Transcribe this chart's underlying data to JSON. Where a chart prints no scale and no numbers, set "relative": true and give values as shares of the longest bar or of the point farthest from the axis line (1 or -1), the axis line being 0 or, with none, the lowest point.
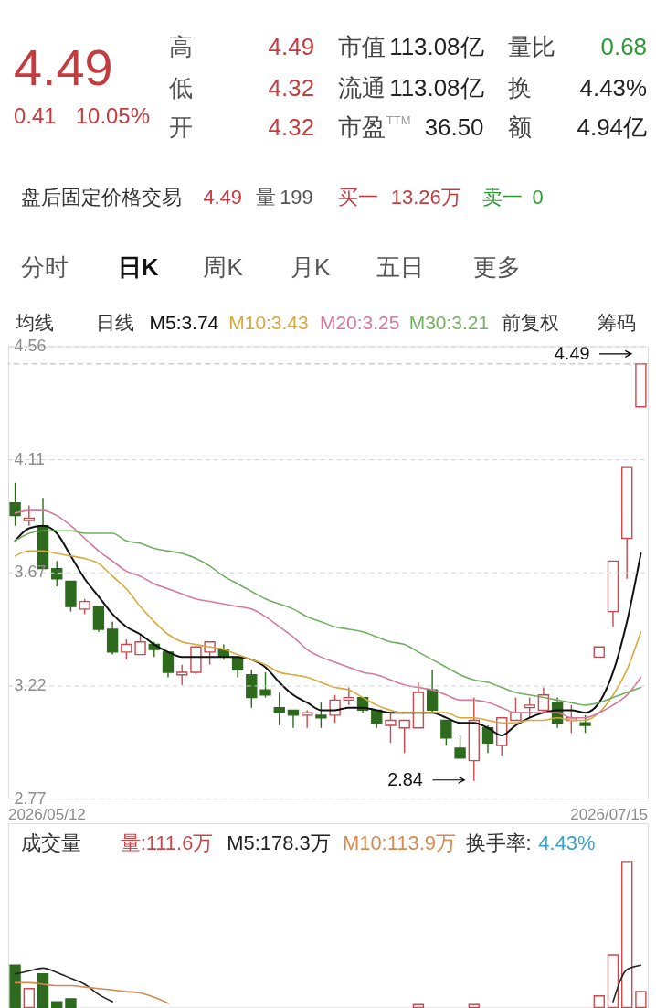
{
  "chart_data": [
    {
      "type": "candlestick",
      "categories": [
        null,
        null,
        null,
        null,
        null,
        null,
        null,
        null,
        null,
        null,
        null,
        null,
        null,
        null,
        null,
        null,
        null,
        null,
        null,
        null,
        null,
        null,
        null,
        null,
        null,
        null,
        null,
        null,
        null,
        null,
        null,
        null,
        null,
        null,
        null,
        null,
        null,
        null,
        null,
        null,
        null,
        null,
        null,
        null,
        null,
        null
      ],
      "ohlc": [
        [
          3.94,
          4.02,
          3.85,
          3.89
        ],
        [
          3.87,
          3.93,
          3.85,
          3.88
        ],
        [
          3.85,
          3.96,
          3.68,
          3.68
        ],
        [
          3.68,
          3.71,
          3.61,
          3.64
        ],
        [
          3.63,
          3.63,
          3.51,
          3.53
        ],
        [
          3.52,
          3.56,
          3.5,
          3.55
        ],
        [
          3.53,
          3.53,
          3.43,
          3.44
        ],
        [
          3.44,
          3.47,
          3.34,
          3.35
        ],
        [
          3.35,
          3.4,
          3.32,
          3.38
        ],
        [
          3.34,
          3.42,
          3.34,
          3.39
        ],
        [
          3.38,
          3.39,
          3.33,
          3.36
        ],
        [
          3.35,
          3.35,
          3.25,
          3.27
        ],
        [
          3.26,
          3.3,
          3.22,
          3.27
        ],
        [
          3.27,
          3.38,
          3.26,
          3.37
        ],
        [
          3.35,
          3.39,
          3.3,
          3.39
        ],
        [
          3.36,
          3.38,
          3.32,
          3.33
        ],
        [
          3.33,
          3.33,
          3.25,
          3.28
        ],
        [
          3.26,
          3.28,
          3.13,
          3.17
        ],
        [
          3.2,
          3.27,
          3.17,
          3.18
        ],
        [
          3.13,
          3.19,
          3.06,
          3.11
        ],
        [
          3.12,
          3.12,
          3.05,
          3.1
        ],
        [
          3.1,
          3.12,
          3.05,
          3.11
        ],
        [
          3.1,
          3.15,
          3.05,
          3.09
        ],
        [
          3.1,
          3.18,
          3.07,
          3.16
        ],
        [
          3.16,
          3.21,
          3.14,
          3.17
        ],
        [
          3.17,
          3.17,
          3.11,
          3.12
        ],
        [
          3.12,
          3.12,
          3.05,
          3.07
        ],
        [
          3.06,
          3.11,
          2.99,
          3.08
        ],
        [
          3.05,
          3.08,
          2.95,
          3.08
        ],
        [
          3.05,
          3.23,
          3.05,
          3.19
        ],
        [
          3.2,
          3.28,
          3.11,
          3.12
        ],
        [
          3.08,
          3.08,
          2.98,
          3.01
        ],
        [
          2.97,
          3.02,
          2.93,
          2.93
        ],
        [
          2.92,
          3.17,
          2.84,
          3.08
        ],
        [
          3.05,
          3.06,
          2.95,
          2.99
        ],
        [
          2.98,
          3.09,
          2.94,
          3.09
        ],
        [
          3.08,
          3.17,
          3.08,
          3.11
        ],
        [
          3.13,
          3.17,
          3.09,
          3.14
        ],
        [
          3.12,
          3.21,
          3.11,
          3.18
        ],
        [
          3.15,
          3.17,
          3.05,
          3.07
        ],
        [
          3.08,
          3.14,
          3.03,
          3.09
        ],
        [
          3.07,
          3.1,
          3.03,
          3.06
        ],
        [
          3.33,
          3.37,
          3.33,
          3.37
        ],
        [
          3.51,
          3.71,
          3.45,
          3.71
        ],
        [
          3.8,
          4.08,
          3.64,
          4.08
        ],
        [
          4.32,
          4.49,
          4.32,
          4.49
        ]
      ],
      "colors": [
        "#2e6a1e",
        "#c8494e",
        "#2e6a1e",
        "#2e6a1e",
        "#2e6a1e",
        "#c8494e",
        "#2e6a1e",
        "#2e6a1e",
        "#c8494e",
        "#c8494e",
        "#2e6a1e",
        "#2e6a1e",
        "#c8494e",
        "#c8494e",
        "#c8494e",
        "#2e6a1e",
        "#2e6a1e",
        "#2e6a1e",
        "#2e6a1e",
        "#2e6a1e",
        "#2e6a1e",
        "#c8494e",
        "#2e6a1e",
        "#c8494e",
        "#c8494e",
        "#2e6a1e",
        "#2e6a1e",
        "#c8494e",
        "#c8494e",
        "#c8494e",
        "#2e6a1e",
        "#2e6a1e",
        "#2e6a1e",
        "#c8494e",
        "#2e6a1e",
        "#c8494e",
        "#c8494e",
        "#c8494e",
        "#c8494e",
        "#2e6a1e",
        "#c8494e",
        "#2e6a1e",
        "#c8494e",
        "#c8494e",
        "#c8494e",
        "#c8494e"
      ],
      "series": [
        {
          "name": "M5:3.74",
          "type": "line",
          "color": "#111111",
          "values": [
            3.79,
            3.84,
            3.85,
            3.82,
            3.73,
            3.64,
            3.57,
            3.5,
            3.45,
            3.42,
            3.38,
            3.35,
            3.33,
            3.33,
            3.33,
            3.33,
            3.33,
            3.32,
            3.29,
            3.23,
            3.18,
            3.15,
            3.12,
            3.12,
            3.13,
            3.13,
            3.12,
            3.11,
            3.11,
            3.11,
            3.11,
            3.09,
            3.07,
            3.07,
            3.05,
            3.02,
            3.06,
            3.09,
            3.11,
            3.12,
            3.12,
            3.11,
            3.15,
            3.27,
            3.47,
            3.74
          ]
        },
        {
          "name": "M10:3.43",
          "type": "line",
          "color": "#d9a93c",
          "values": [
            3.73,
            3.75,
            3.75,
            3.74,
            3.73,
            3.72,
            3.7,
            3.65,
            3.6,
            3.53,
            3.47,
            3.42,
            3.39,
            3.38,
            3.37,
            3.36,
            3.34,
            3.32,
            3.3,
            3.27,
            3.26,
            3.25,
            3.23,
            3.21,
            3.2,
            3.17,
            3.14,
            3.12,
            3.11,
            3.11,
            3.11,
            3.11,
            3.09,
            3.09,
            3.08,
            3.07,
            3.07,
            3.08,
            3.08,
            3.09,
            3.08,
            3.08,
            3.11,
            3.18,
            3.28,
            3.43
          ]
        },
        {
          "name": "M20:3.25",
          "type": "line",
          "color": "#d5799a",
          "values": [
            3.9,
            3.91,
            3.91,
            3.89,
            3.85,
            3.8,
            3.75,
            3.71,
            3.67,
            3.65,
            3.62,
            3.6,
            3.58,
            3.56,
            3.55,
            3.54,
            3.53,
            3.52,
            3.49,
            3.45,
            3.41,
            3.36,
            3.33,
            3.31,
            3.29,
            3.27,
            3.26,
            3.24,
            3.22,
            3.21,
            3.2,
            3.18,
            3.16,
            3.16,
            3.15,
            3.13,
            3.11,
            3.11,
            3.11,
            3.11,
            3.09,
            3.09,
            3.11,
            3.14,
            3.18,
            3.25
          ]
        },
        {
          "name": "M30:3.21",
          "type": "line",
          "color": "#72b062",
          "values": [
            3.79,
            3.82,
            3.83,
            3.83,
            3.83,
            3.82,
            3.82,
            3.82,
            3.79,
            3.78,
            3.76,
            3.75,
            3.74,
            3.72,
            3.69,
            3.65,
            3.62,
            3.59,
            3.56,
            3.54,
            3.52,
            3.49,
            3.47,
            3.45,
            3.44,
            3.43,
            3.41,
            3.39,
            3.38,
            3.35,
            3.32,
            3.29,
            3.26,
            3.24,
            3.23,
            3.21,
            3.19,
            3.18,
            3.17,
            3.16,
            3.15,
            3.14,
            3.15,
            3.17,
            3.19,
            3.21
          ]
        }
      ],
      "ylim": [
        2.77,
        4.56
      ],
      "yticks": [
        4.56,
        {
          "value": 4.1125,
          "label": "4.11"
        },
        {
          "value": 3.665,
          "label": "3.67"
        },
        {
          "value": 3.2175,
          "label": "3.22"
        },
        2.77
      ],
      "grid": "y",
      "tick_labels": "y",
      "ref_lines": [
        {
          "axis": "y",
          "value": 4.49,
          "color": "#b4b4b4",
          "line_style": "dashed"
        }
      ],
      "annotations": [
        "4.49",
        "0.41",
        "10.05%",
        "高",
        "4.49",
        "低",
        "4.32",
        "开",
        "4.32",
        "市值",
        "113.08亿",
        "流通",
        "113.08亿",
        "市盈$^{TTM}$",
        "36.50",
        "量比",
        "0.68",
        "换",
        "4.43%",
        "额",
        "4.94亿",
        "盘后固定价格交易",
        "4.49",
        "量",
        "199",
        "买一",
        "13.26万",
        "卖一",
        "0",
        "分时",
        "日K",
        "周K",
        "月K",
        "五日",
        "更多",
        "均线",
        "日线",
        "前复权",
        "筹码",
        "4.49",
        "2.84",
        "2026/05/12",
        "2026/07/15"
      ],
      "legend": "top"
    },
    {
      "type": "bar",
      "relative": true,
      "tick_labels": false,
      "categories": [
        null,
        null,
        null,
        null,
        null,
        null,
        null,
        null,
        null,
        null,
        null,
        null,
        null,
        null,
        null,
        null,
        null,
        null,
        null,
        null,
        null,
        null,
        null,
        null,
        null,
        null,
        null,
        null,
        null,
        null,
        null,
        null,
        null,
        null,
        null,
        null,
        null,
        null,
        null,
        null,
        null,
        null,
        null,
        null,
        null,
        null
      ],
      "series": [
        {
          "name": "量:111.6万",
          "type": "bar",
          "color": "#c8494e",
          "colors": [
            "#2e6a1e",
            "#c8494e",
            "#2e6a1e",
            "#2e6a1e",
            "#2e6a1e",
            null,
            null,
            null,
            null,
            null,
            null,
            null,
            null,
            null,
            null,
            null,
            null,
            null,
            null,
            null,
            null,
            null,
            null,
            null,
            null,
            null,
            null,
            null,
            null,
            "#c8494e",
            null,
            null,
            null,
            "#c8494e",
            null,
            null,
            null,
            null,
            null,
            null,
            null,
            null,
            "#c8494e",
            "#c8494e",
            "#c8494e",
            "#c8494e"
          ],
          "values": [
            0.29,
            0.13,
            0.23,
            0.04,
            0.06,
            null,
            null,
            null,
            null,
            null,
            null,
            null,
            null,
            null,
            null,
            null,
            null,
            null,
            null,
            null,
            null,
            null,
            null,
            null,
            null,
            null,
            null,
            null,
            null,
            0.02,
            null,
            null,
            null,
            0.02,
            null,
            null,
            null,
            null,
            null,
            null,
            null,
            null,
            0.08,
            0.36,
            1,
            0.11
          ]
        },
        {
          "name": "M5:178.3万",
          "type": "line",
          "color": "#222222",
          "values": [
            0.23,
            0.25,
            0.27,
            0.24,
            0.2,
            0.16,
            0.09,
            0.04,
            null,
            null,
            null,
            null,
            null,
            null,
            null,
            null,
            null,
            null,
            null,
            null,
            null,
            null,
            null,
            null,
            null,
            null,
            null,
            null,
            null,
            null,
            null,
            null,
            null,
            null,
            null,
            null,
            null,
            null,
            null,
            null,
            null,
            null,
            null,
            0.04,
            0.26,
            0.29
          ]
        },
        {
          "name": "M10:113.9万",
          "type": "line",
          "color": "#d68a52",
          "values": [
            0.17,
            0.17,
            0.16,
            0.15,
            0.15,
            0.14,
            0.13,
            0.12,
            0.11,
            0.1,
            0.07,
            0.03,
            null,
            null,
            null,
            null,
            null,
            null,
            null,
            null,
            null,
            null,
            null,
            null,
            null,
            null,
            null,
            null,
            null,
            null,
            null,
            null,
            null,
            null,
            null,
            null,
            null,
            null,
            null,
            null,
            null,
            null,
            null,
            null,
            null,
            null
          ]
        }
      ],
      "annotations": [
        "成交量",
        "换手率:",
        "4.43%"
      ],
      "legend": "top"
    }
  ]
}
